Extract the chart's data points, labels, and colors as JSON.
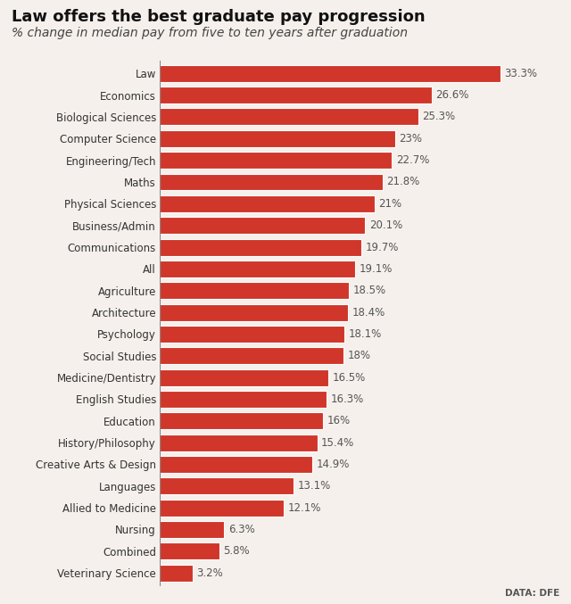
{
  "title": "Law offers the best graduate pay progression",
  "subtitle": "% change in median pay from five to ten years after graduation",
  "categories": [
    "Law",
    "Economics",
    "Biological Sciences",
    "Computer Science",
    "Engineering/Tech",
    "Maths",
    "Physical Sciences",
    "Business/Admin",
    "Communications",
    "All",
    "Agriculture",
    "Architecture",
    "Psychology",
    "Social Studies",
    "Medicine/Dentistry",
    "English Studies",
    "Education",
    "History/Philosophy",
    "Creative Arts & Design",
    "Languages",
    "Allied to Medicine",
    "Nursing",
    "Combined",
    "Veterinary Science"
  ],
  "values": [
    33.3,
    26.6,
    25.3,
    23.0,
    22.7,
    21.8,
    21.0,
    20.1,
    19.7,
    19.1,
    18.5,
    18.4,
    18.1,
    18.0,
    16.5,
    16.3,
    16.0,
    15.4,
    14.9,
    13.1,
    12.1,
    6.3,
    5.8,
    3.2
  ],
  "labels": [
    "33.3%",
    "26.6%",
    "25.3%",
    "23%",
    "22.7%",
    "21.8%",
    "21%",
    "20.1%",
    "19.7%",
    "19.1%",
    "18.5%",
    "18.4%",
    "18.1%",
    "18%",
    "16.5%",
    "16.3%",
    "16%",
    "15.4%",
    "14.9%",
    "13.1%",
    "12.1%",
    "6.3%",
    "5.8%",
    "3.2%"
  ],
  "bar_color": "#d0362a",
  "background_color": "#f5f0eb",
  "title_fontsize": 13,
  "subtitle_fontsize": 10,
  "label_fontsize": 8.5,
  "category_fontsize": 8.5,
  "data_source": "DATA: DFE",
  "xlim": [
    0,
    38
  ]
}
